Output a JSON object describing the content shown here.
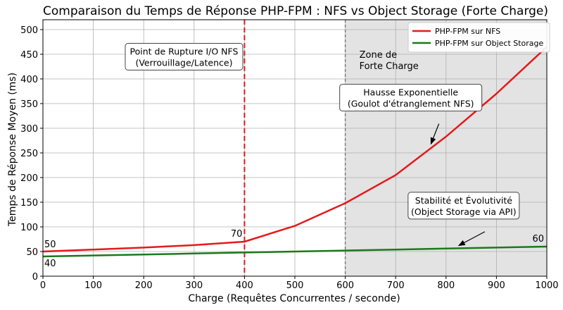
{
  "chart_data": {
    "type": "line",
    "title": "Comparaison du Temps de Réponse PHP-FPM : NFS vs Object Storage (Forte Charge)",
    "xlabel": "Charge (Requêtes Concurrentes / seconde)",
    "ylabel": "Temps de Réponse Moyen (ms)",
    "xlim": [
      0,
      1000
    ],
    "ylim": [
      0,
      520
    ],
    "xticks": [
      0,
      100,
      200,
      300,
      400,
      500,
      600,
      700,
      800,
      900,
      1000
    ],
    "yticks": [
      0,
      50,
      100,
      150,
      200,
      250,
      300,
      350,
      400,
      450,
      500
    ],
    "grid": true,
    "legend_position": "top-right",
    "series": [
      {
        "name": "PHP-FPM sur NFS",
        "color": "#e31a1c",
        "x": [
          0,
          100,
          200,
          300,
          400,
          500,
          600,
          700,
          800,
          900,
          1000
        ],
        "y": [
          50,
          54,
          58,
          63,
          70,
          102,
          148,
          205,
          283,
          370,
          465
        ]
      },
      {
        "name": "PHP-FPM sur Object Storage",
        "color": "#1a7a1a",
        "x": [
          0,
          100,
          200,
          300,
          400,
          500,
          600,
          700,
          800,
          900,
          1000
        ],
        "y": [
          40,
          42,
          44,
          46,
          48,
          50,
          52,
          54,
          56,
          58,
          60
        ]
      }
    ],
    "vertical_markers": [
      {
        "x": 400,
        "style": "dashed",
        "color": "#e31a1c"
      },
      {
        "x": 600,
        "style": "dashed",
        "color": "#777777"
      }
    ],
    "shaded_region": {
      "x_from": 600,
      "x_to": 1000,
      "color": "#e3e3e3",
      "label_lines": [
        "Zone de",
        "Forte Charge"
      ]
    },
    "point_labels": [
      {
        "text": "50",
        "x": 0,
        "y": 50
      },
      {
        "text": "40",
        "x": 0,
        "y": 40
      },
      {
        "text": "70",
        "x": 400,
        "y": 70
      },
      {
        "text": "60",
        "x": 1000,
        "y": 60
      }
    ],
    "annotations": [
      {
        "name": "rupture",
        "lines": [
          "Point de Rupture I/O NFS",
          "(Verrouillage/Latence)"
        ],
        "text_at": [
          280,
          445
        ]
      },
      {
        "name": "exponentielle",
        "lines": [
          "Hausse Exponentielle",
          "(Goulot d'étranglement NFS)"
        ],
        "text_at": [
          730,
          362
        ],
        "arrow_to": [
          770,
          268
        ]
      },
      {
        "name": "stabilite",
        "lines": [
          "Stabilité et Évolutivité",
          "(Object Storage via API)"
        ],
        "text_at": [
          835,
          143
        ],
        "arrow_to": [
          825,
          62
        ]
      }
    ]
  }
}
